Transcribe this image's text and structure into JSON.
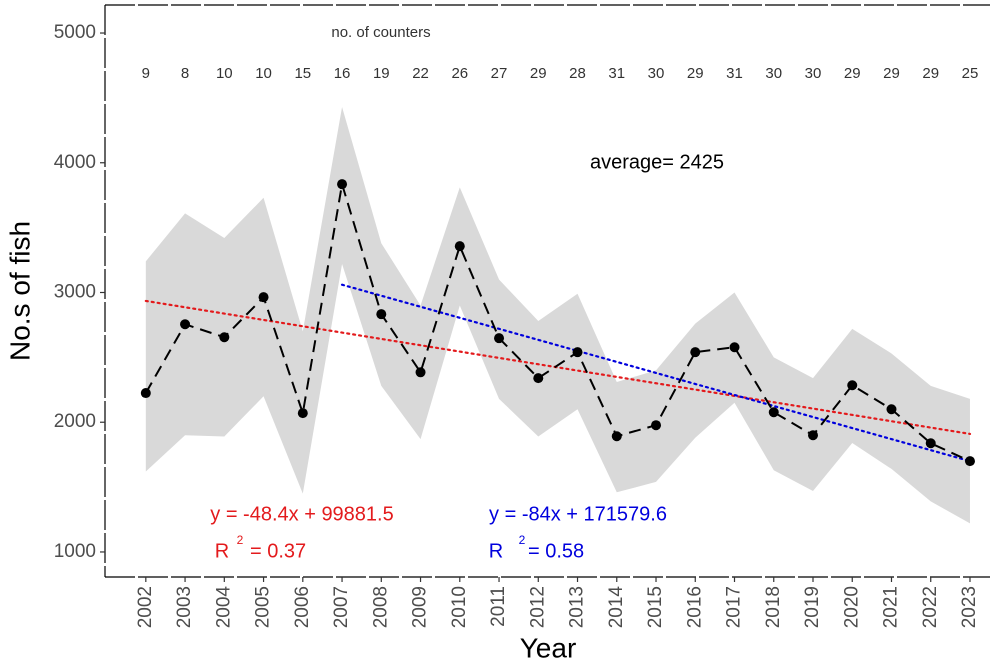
{
  "chart_data": {
    "type": "line",
    "xlabel": "Year",
    "ylabel": "No.s of fish",
    "x": [
      2002,
      2003,
      2004,
      2005,
      2006,
      2007,
      2008,
      2009,
      2010,
      2011,
      2012,
      2013,
      2014,
      2015,
      2016,
      2017,
      2018,
      2019,
      2020,
      2021,
      2022,
      2023
    ],
    "xlim": [
      2000.96,
      2023.51
    ],
    "xticks": [
      2002,
      2003,
      2004,
      2005,
      2006,
      2007,
      2008,
      2009,
      2010,
      2011,
      2012,
      2013,
      2014,
      2015,
      2016,
      2017,
      2018,
      2019,
      2020,
      2021,
      2022,
      2023
    ],
    "ylim": [
      807,
      5216
    ],
    "yticks": [
      1000,
      2000,
      3000,
      4000,
      5000
    ],
    "series": [
      {
        "color": "#000000",
        "band_color": "#d9d9d9",
        "values": [
          2225,
          2755,
          2655,
          2964,
          2070,
          3835,
          2833,
          2385,
          3357,
          2648,
          2340,
          2540,
          1892,
          1977,
          2540,
          2578,
          2077,
          1900,
          2285,
          2100,
          1838,
          1700
        ],
        "lower": [
          1620,
          1900,
          1890,
          2200,
          1450,
          3220,
          2280,
          1870,
          2900,
          2180,
          1890,
          2100,
          1460,
          1540,
          1880,
          2150,
          1630,
          1470,
          1840,
          1640,
          1390,
          1220
        ],
        "upper": [
          3240,
          3610,
          3420,
          3730,
          2700,
          4430,
          3380,
          2900,
          3810,
          3100,
          2780,
          2990,
          2310,
          2400,
          2760,
          3000,
          2500,
          2340,
          2720,
          2530,
          2280,
          2180
        ]
      }
    ],
    "trends": [
      {
        "color": "#e31a1c",
        "x": [
          2002,
          2023
        ],
        "values": [
          2935,
          1910
        ],
        "equation": "y = -48.4x + 99881.5",
        "r2_symbol": "R",
        "r2_sup": "2",
        "r2_value": "= 0.37"
      },
      {
        "color": "#0000dd",
        "x": [
          2007,
          2023
        ],
        "values": [
          3060,
          1700
        ],
        "equation": "y = -84x + 171579.6",
        "r2_symbol": "R",
        "r2_sup": "2",
        "r2_value": "= 0.58"
      }
    ],
    "counters_title": "no. of counters",
    "counters": [
      9,
      8,
      10,
      10,
      15,
      16,
      19,
      22,
      26,
      27,
      29,
      28,
      31,
      30,
      29,
      31,
      30,
      30,
      29,
      29,
      29,
      25
    ],
    "average_label": "average= 2425"
  }
}
